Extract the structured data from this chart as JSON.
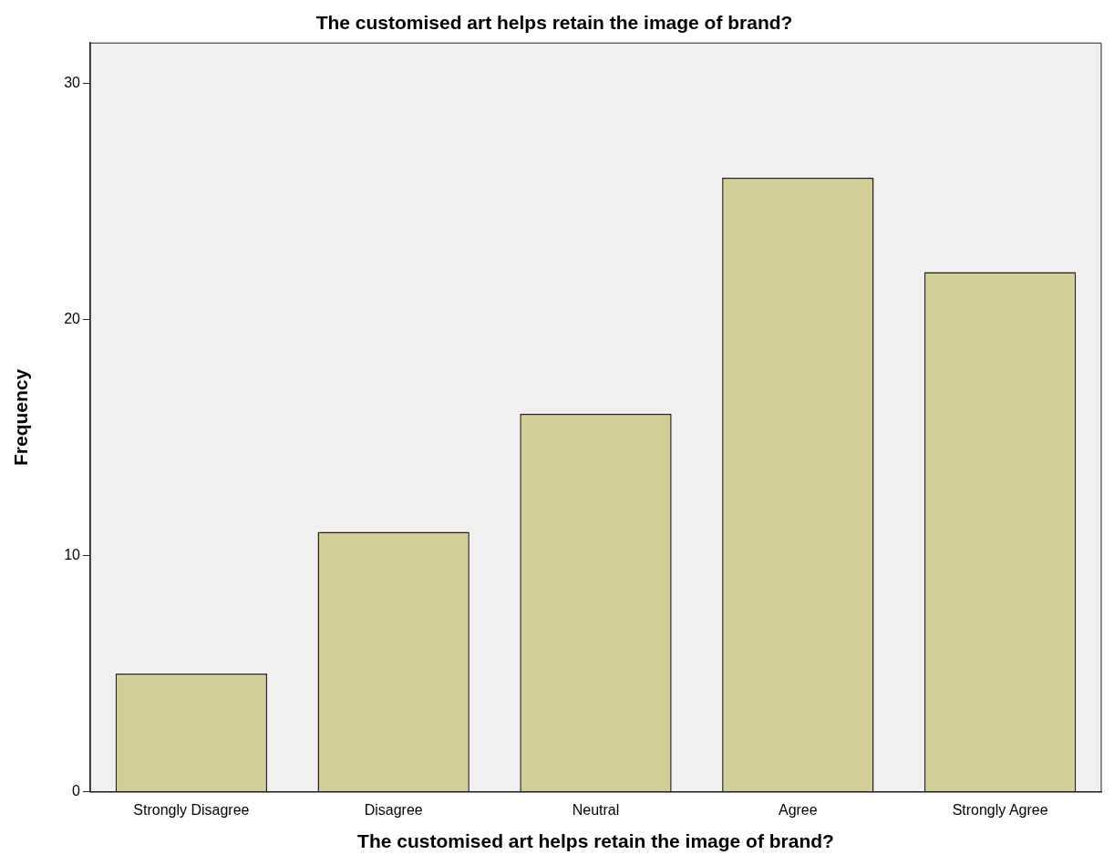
{
  "chart_data": {
    "type": "bar",
    "title": "The customised art helps retain the image of brand?",
    "xlabel": "The customised art helps retain the image of brand?",
    "ylabel": "Frequency",
    "categories": [
      "Strongly Disagree",
      "Disagree",
      "Neutral",
      "Agree",
      "Strongly Agree"
    ],
    "values": [
      5,
      11,
      16,
      26,
      22
    ],
    "color": "#d3ce97",
    "ylim": [
      0,
      31.7
    ],
    "yticks": [
      0,
      10,
      20,
      30
    ],
    "grid": false,
    "legend": false
  }
}
